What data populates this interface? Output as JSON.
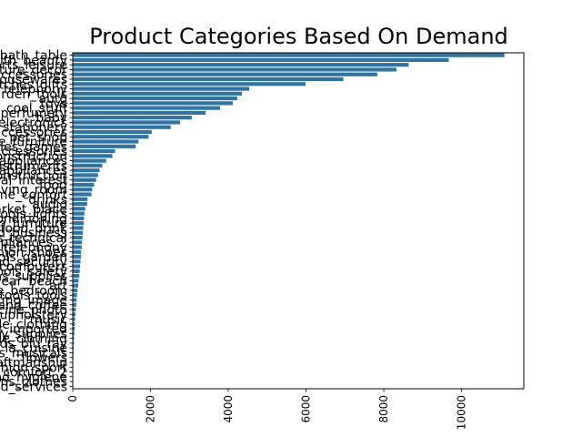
{
  "chart_data": {
    "type": "bar",
    "orientation": "horizontal",
    "title": "Product Categories Based On Demand",
    "xlabel": "",
    "ylabel": "",
    "xlim": [
      0,
      11600
    ],
    "x_ticks": [
      0,
      2000,
      4000,
      6000,
      8000,
      10000
    ],
    "x_tick_labels": [
      "0",
      "2000",
      "4000",
      "6000",
      "8000",
      "10000"
    ],
    "x_tick_rotation": 90,
    "bar_color": "#3274a1",
    "grid": false,
    "categories": [
      "bed_bath_table",
      "health_beauty",
      "sports_leisure",
      "furniture_decor",
      "computers_accessories",
      "housewares",
      "watches_gifts",
      "telephony",
      "garden_tools",
      "auto",
      "toys",
      "cool_stuff",
      "perfumery",
      "baby",
      "electronics",
      "stationery",
      "fashion_bags_accessories",
      "pet_shop",
      "office_furniture",
      "consoles_games",
      "luggage_accessories",
      "construction_tools_construction",
      "home_appliances",
      "musical_instruments",
      "small_appliances",
      "home_construction",
      "books_general_interest",
      "food",
      "furniture_living_room",
      "home_confort",
      "drinks",
      "audio",
      "market_place",
      "construction_tools_lights",
      "air_conditioning",
      "kitchen_dining_laundry_garden_furniture",
      "food_drink",
      "industry_commerce_and_business",
      "books_technical",
      "home_appliances_2",
      "fixed_telephony",
      "fashion_shoes",
      "costruction_tools_garden",
      "signaling_and_security",
      "computers",
      "construction_tools_safety",
      "christmas_supplies",
      "fashion_underwear_beach",
      "art",
      "furniture_bedroom",
      "costruction_tools_tools",
      "tablets_printing_image",
      "small_appliances_home_oven_and_coffee",
      "cine_photo",
      "furniture_mattress_and_upholstery",
      "music",
      "fashion_male_clothing",
      "books_imported",
      "party_supplies",
      "fashio_female_clothing",
      "dvds_blu_ray",
      "la_cuisine",
      "cds_dvds_musicals",
      "flowers",
      "arts_and_craftmanship",
      "fashion_sport",
      "home_comfort_2",
      "diapers_and_hygiene",
      "fashion_childrens_clothes",
      "security_and_services"
    ],
    "values": [
      11100,
      9670,
      8640,
      8330,
      7830,
      6960,
      5990,
      4540,
      4350,
      4230,
      4120,
      3790,
      3420,
      3060,
      2760,
      2520,
      2030,
      1950,
      1690,
      1620,
      1090,
      1020,
      860,
      760,
      690,
      650,
      600,
      550,
      500,
      480,
      380,
      370,
      320,
      300,
      290,
      280,
      270,
      260,
      250,
      240,
      230,
      215,
      210,
      200,
      190,
      180,
      170,
      150,
      140,
      120,
      110,
      100,
      90,
      80,
      70,
      60,
      55,
      50,
      40,
      35,
      30,
      25,
      20,
      15,
      12,
      10,
      8,
      6,
      4,
      2
    ]
  }
}
